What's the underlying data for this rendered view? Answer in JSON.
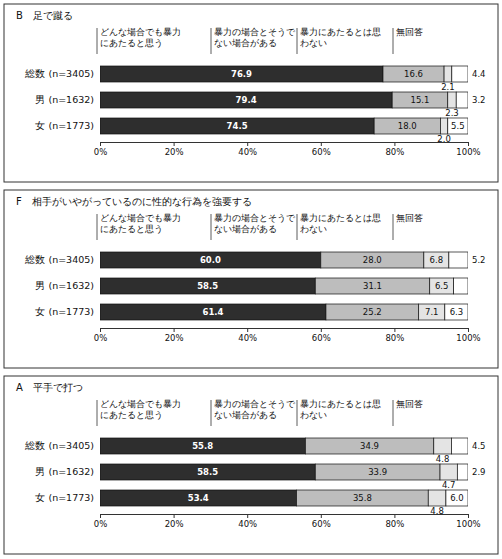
{
  "chart_data": [
    {
      "type": "bar",
      "title": "B　足で蹴る",
      "orientation": "horizontal",
      "stacked": true,
      "data_labels": true,
      "legend": "top",
      "categories": [
        "総数 (n=3405)",
        "男 (n=1632)",
        "女 (n=1773)"
      ],
      "series": [
        {
          "name": "どんな場合でも暴力にあたると思う",
          "color": "#2e2e2e",
          "values": [
            76.9,
            79.4,
            74.5
          ],
          "value_labels": [
            "76.9",
            "79.4",
            "74.5"
          ]
        },
        {
          "name": "暴力の場合とそうでない場合がある",
          "color": "#bdbdbd",
          "values": [
            16.6,
            15.1,
            18.0
          ],
          "value_labels": [
            "16.6",
            "15.1",
            "18.0"
          ]
        },
        {
          "name": "暴力にあたるとは思わない",
          "color": "#e4e4e4",
          "values": [
            2.1,
            2.3,
            2.0
          ],
          "value_labels": [
            "2.1",
            "2.3",
            "2.0"
          ]
        },
        {
          "name": "無回答",
          "color": "#ffffff",
          "values": [
            4.4,
            3.2,
            5.5
          ],
          "value_labels": [
            "4.4",
            "3.2",
            "5.5"
          ]
        }
      ],
      "xlim": [
        0,
        100
      ],
      "xticks": [
        {
          "value": 0,
          "label": "0%"
        },
        {
          "value": 20,
          "label": "20%"
        },
        {
          "value": 40,
          "label": "40%"
        },
        {
          "value": 60,
          "label": "60%"
        },
        {
          "value": 80,
          "label": "80%"
        },
        {
          "value": 100,
          "label": "100%"
        }
      ]
    },
    {
      "type": "bar",
      "title": "F　相手がいやがっているのに性的な行為を強要する",
      "orientation": "horizontal",
      "stacked": true,
      "data_labels": true,
      "legend": "top",
      "categories": [
        "総数 (n=3405)",
        "男 (n=1632)",
        "女 (n=1773)"
      ],
      "series": [
        {
          "name": "どんな場合でも暴力にあたると思う",
          "color": "#2e2e2e",
          "values": [
            60.0,
            58.5,
            61.4
          ],
          "value_labels": [
            "60.0",
            "58.5",
            "61.4"
          ]
        },
        {
          "name": "暴力の場合とそうでない場合がある",
          "color": "#bdbdbd",
          "values": [
            28.0,
            31.1,
            25.2
          ],
          "value_labels": [
            "28.0",
            "31.1",
            "25.2"
          ]
        },
        {
          "name": "暴力にあたるとは思わない",
          "color": "#e4e4e4",
          "values": [
            6.8,
            6.5,
            7.1
          ],
          "value_labels": [
            "6.8",
            "6.5",
            "7.1"
          ]
        },
        {
          "name": "無回答",
          "color": "#ffffff",
          "values": [
            5.2,
            3.9,
            6.3
          ],
          "value_labels": [
            "5.2",
            null,
            "6.3"
          ]
        }
      ],
      "xlim": [
        0,
        100
      ],
      "xticks": [
        {
          "value": 0,
          "label": "0%"
        },
        {
          "value": 20,
          "label": "20%"
        },
        {
          "value": 40,
          "label": "40%"
        },
        {
          "value": 60,
          "label": "60%"
        },
        {
          "value": 80,
          "label": "80%"
        },
        {
          "value": 100,
          "label": "100%"
        }
      ]
    },
    {
      "type": "bar",
      "title": "A　平手で打つ",
      "orientation": "horizontal",
      "stacked": true,
      "data_labels": true,
      "legend": "top",
      "categories": [
        "総数 (n=3405)",
        "男 (n=1632)",
        "女 (n=1773)"
      ],
      "series": [
        {
          "name": "どんな場合でも暴力にあたると思う",
          "color": "#2e2e2e",
          "values": [
            55.8,
            58.5,
            53.4
          ],
          "value_labels": [
            "55.8",
            "58.5",
            "53.4"
          ]
        },
        {
          "name": "暴力の場合とそうでない場合がある",
          "color": "#bdbdbd",
          "values": [
            34.9,
            33.9,
            35.8
          ],
          "value_labels": [
            "34.9",
            "33.9",
            "35.8"
          ]
        },
        {
          "name": "暴力にあたるとは思わない",
          "color": "#e4e4e4",
          "values": [
            4.8,
            4.7,
            4.8
          ],
          "value_labels": [
            "4.8",
            "4.7",
            "4.8"
          ]
        },
        {
          "name": "無回答",
          "color": "#ffffff",
          "values": [
            4.5,
            2.9,
            6.0
          ],
          "value_labels": [
            "4.5",
            "2.9",
            "6.0"
          ]
        }
      ],
      "xlim": [
        0,
        100
      ],
      "xticks": [
        {
          "value": 0,
          "label": "0%"
        },
        {
          "value": 20,
          "label": "20%"
        },
        {
          "value": 40,
          "label": "40%"
        },
        {
          "value": 60,
          "label": "60%"
        },
        {
          "value": 80,
          "label": "80%"
        },
        {
          "value": 100,
          "label": "100%"
        }
      ]
    }
  ]
}
